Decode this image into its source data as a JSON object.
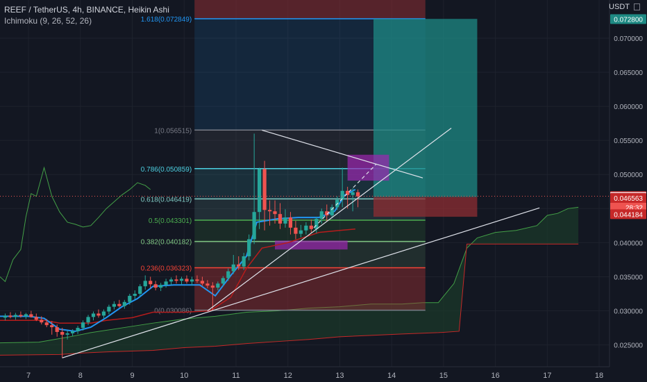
{
  "header": {
    "symbol_line": "REEF / TetherUS, 4h, BINANCE, Heikin Ashi",
    "indicator_line": "Ichimoku (9, 26, 52, 26)",
    "currency": "USDT"
  },
  "colors": {
    "background": "#131722",
    "up": "#26a69a",
    "down": "#ef5350",
    "tenkan": "#2196f3",
    "kijun": "#b71c1c",
    "lagging": "#43a047",
    "cloud_fill": "#1b3a2a",
    "cloud_line_a": "#43a047",
    "cloud_line_b": "#c62828",
    "fib_100": "#787b86",
    "fib_1618": "#2196f3",
    "fib_0786": "#4dd0e1",
    "fib_0618": "#80cbc4",
    "fib_05": "#4caf50",
    "fib_0382": "#81c784",
    "fib_0236": "#f44336",
    "fib_0": "#787b86",
    "position_target": "#1e8a84",
    "position_stop": "#8e2d33",
    "zone_magenta": "#9c27b0",
    "trendline": "#e0e3eb"
  },
  "chart_data": {
    "type": "candlestick",
    "title": "REEF / TetherUS, 4h, BINANCE, Heikin Ashi",
    "indicator": "Ichimoku (9, 26, 52, 26)",
    "x_axis": {
      "ticks": [
        "7",
        "8",
        "9",
        "10",
        "11",
        "12",
        "13",
        "14",
        "15",
        "16",
        "17",
        "18"
      ],
      "tick_x": [
        7,
        8,
        9,
        10,
        11,
        12,
        13,
        14,
        15,
        16,
        17,
        18
      ],
      "xlim": [
        6.45,
        18.2
      ]
    },
    "y_axis": {
      "ticks": [
        "0.025000",
        "0.030000",
        "0.035000",
        "0.040000",
        "0.045000",
        "0.050000",
        "0.055000",
        "0.060000",
        "0.065000",
        "0.070000"
      ],
      "tick_values": [
        0.025,
        0.03,
        0.035,
        0.04,
        0.045,
        0.05,
        0.055,
        0.06,
        0.065,
        0.07
      ],
      "ylim": [
        0.0218,
        0.0756
      ]
    },
    "candles": [
      {
        "x": 6.55,
        "o": 0.029,
        "h": 0.0296,
        "l": 0.0286,
        "c": 0.0293
      },
      {
        "x": 6.65,
        "o": 0.0293,
        "h": 0.0298,
        "l": 0.0289,
        "c": 0.0291
      },
      {
        "x": 6.75,
        "o": 0.0291,
        "h": 0.0297,
        "l": 0.0287,
        "c": 0.0294
      },
      {
        "x": 6.85,
        "o": 0.0294,
        "h": 0.0299,
        "l": 0.029,
        "c": 0.0292
      },
      {
        "x": 6.95,
        "o": 0.0292,
        "h": 0.0297,
        "l": 0.0288,
        "c": 0.0295
      },
      {
        "x": 7.05,
        "o": 0.0295,
        "h": 0.03,
        "l": 0.029,
        "c": 0.0291
      },
      {
        "x": 7.15,
        "o": 0.0291,
        "h": 0.0296,
        "l": 0.0285,
        "c": 0.0287
      },
      {
        "x": 7.25,
        "o": 0.0287,
        "h": 0.0292,
        "l": 0.028,
        "c": 0.0283
      },
      {
        "x": 7.35,
        "o": 0.0283,
        "h": 0.0288,
        "l": 0.0276,
        "c": 0.0279
      },
      {
        "x": 7.45,
        "o": 0.0279,
        "h": 0.0285,
        "l": 0.0265,
        "c": 0.0276
      },
      {
        "x": 7.55,
        "o": 0.0276,
        "h": 0.028,
        "l": 0.0262,
        "c": 0.0269
      },
      {
        "x": 7.65,
        "o": 0.0269,
        "h": 0.0275,
        "l": 0.0231,
        "c": 0.0265
      },
      {
        "x": 7.75,
        "o": 0.0265,
        "h": 0.0271,
        "l": 0.0258,
        "c": 0.0267
      },
      {
        "x": 7.85,
        "o": 0.0267,
        "h": 0.0273,
        "l": 0.0263,
        "c": 0.027
      },
      {
        "x": 7.95,
        "o": 0.027,
        "h": 0.0278,
        "l": 0.0266,
        "c": 0.0275
      },
      {
        "x": 8.05,
        "o": 0.0275,
        "h": 0.0286,
        "l": 0.0271,
        "c": 0.0283
      },
      {
        "x": 8.15,
        "o": 0.0283,
        "h": 0.0294,
        "l": 0.0279,
        "c": 0.0291
      },
      {
        "x": 8.25,
        "o": 0.0291,
        "h": 0.0299,
        "l": 0.0286,
        "c": 0.0296
      },
      {
        "x": 8.35,
        "o": 0.0296,
        "h": 0.0302,
        "l": 0.029,
        "c": 0.0293
      },
      {
        "x": 8.45,
        "o": 0.0293,
        "h": 0.0302,
        "l": 0.0289,
        "c": 0.0299
      },
      {
        "x": 8.55,
        "o": 0.0299,
        "h": 0.0309,
        "l": 0.0295,
        "c": 0.0306
      },
      {
        "x": 8.65,
        "o": 0.0306,
        "h": 0.0314,
        "l": 0.0302,
        "c": 0.031
      },
      {
        "x": 8.75,
        "o": 0.031,
        "h": 0.0316,
        "l": 0.0305,
        "c": 0.0307
      },
      {
        "x": 8.85,
        "o": 0.0307,
        "h": 0.0316,
        "l": 0.0303,
        "c": 0.0313
      },
      {
        "x": 8.95,
        "o": 0.0313,
        "h": 0.0325,
        "l": 0.0309,
        "c": 0.0322
      },
      {
        "x": 9.05,
        "o": 0.0322,
        "h": 0.033,
        "l": 0.0317,
        "c": 0.0325
      },
      {
        "x": 9.15,
        "o": 0.0325,
        "h": 0.0339,
        "l": 0.0321,
        "c": 0.0336
      },
      {
        "x": 9.25,
        "o": 0.0336,
        "h": 0.0352,
        "l": 0.0331,
        "c": 0.0344
      },
      {
        "x": 9.35,
        "o": 0.0344,
        "h": 0.035,
        "l": 0.0333,
        "c": 0.0339
      },
      {
        "x": 9.45,
        "o": 0.0339,
        "h": 0.0344,
        "l": 0.033,
        "c": 0.0334
      },
      {
        "x": 9.55,
        "o": 0.0334,
        "h": 0.0341,
        "l": 0.0329,
        "c": 0.0338
      },
      {
        "x": 9.65,
        "o": 0.0338,
        "h": 0.0347,
        "l": 0.0334,
        "c": 0.0343
      },
      {
        "x": 9.75,
        "o": 0.0343,
        "h": 0.0349,
        "l": 0.0338,
        "c": 0.0346
      },
      {
        "x": 9.85,
        "o": 0.0346,
        "h": 0.0352,
        "l": 0.034,
        "c": 0.0344
      },
      {
        "x": 9.95,
        "o": 0.0344,
        "h": 0.035,
        "l": 0.0338,
        "c": 0.0347
      },
      {
        "x": 10.05,
        "o": 0.0347,
        "h": 0.0352,
        "l": 0.034,
        "c": 0.0343
      },
      {
        "x": 10.15,
        "o": 0.0343,
        "h": 0.035,
        "l": 0.0337,
        "c": 0.0346
      },
      {
        "x": 10.25,
        "o": 0.0346,
        "h": 0.0352,
        "l": 0.0341,
        "c": 0.0344
      },
      {
        "x": 10.35,
        "o": 0.0344,
        "h": 0.035,
        "l": 0.0337,
        "c": 0.034
      },
      {
        "x": 10.45,
        "o": 0.034,
        "h": 0.0345,
        "l": 0.0333,
        "c": 0.0337
      },
      {
        "x": 10.55,
        "o": 0.0337,
        "h": 0.0342,
        "l": 0.03,
        "c": 0.0334
      },
      {
        "x": 10.65,
        "o": 0.0334,
        "h": 0.0343,
        "l": 0.033,
        "c": 0.034
      },
      {
        "x": 10.75,
        "o": 0.034,
        "h": 0.0351,
        "l": 0.0336,
        "c": 0.0348
      },
      {
        "x": 10.85,
        "o": 0.0348,
        "h": 0.0362,
        "l": 0.0344,
        "c": 0.0358
      },
      {
        "x": 10.95,
        "o": 0.0358,
        "h": 0.0382,
        "l": 0.0354,
        "c": 0.0368
      },
      {
        "x": 11.05,
        "o": 0.0368,
        "h": 0.038,
        "l": 0.036,
        "c": 0.0365
      },
      {
        "x": 11.15,
        "o": 0.0365,
        "h": 0.0385,
        "l": 0.036,
        "c": 0.038
      },
      {
        "x": 11.25,
        "o": 0.038,
        "h": 0.0412,
        "l": 0.0374,
        "c": 0.0405
      },
      {
        "x": 11.35,
        "o": 0.0405,
        "h": 0.056,
        "l": 0.0398,
        "c": 0.0445
      },
      {
        "x": 11.45,
        "o": 0.0445,
        "h": 0.051,
        "l": 0.042,
        "c": 0.0508
      },
      {
        "x": 11.55,
        "o": 0.0508,
        "h": 0.052,
        "l": 0.0418,
        "c": 0.0448
      },
      {
        "x": 11.65,
        "o": 0.0448,
        "h": 0.0462,
        "l": 0.0425,
        "c": 0.0446
      },
      {
        "x": 11.75,
        "o": 0.0446,
        "h": 0.0462,
        "l": 0.0428,
        "c": 0.0442
      },
      {
        "x": 11.85,
        "o": 0.0442,
        "h": 0.0458,
        "l": 0.042,
        "c": 0.0428
      },
      {
        "x": 11.95,
        "o": 0.0428,
        "h": 0.0449,
        "l": 0.0422,
        "c": 0.0437
      },
      {
        "x": 12.05,
        "o": 0.0437,
        "h": 0.0445,
        "l": 0.0412,
        "c": 0.0422
      },
      {
        "x": 12.15,
        "o": 0.0422,
        "h": 0.0432,
        "l": 0.0405,
        "c": 0.0413
      },
      {
        "x": 12.25,
        "o": 0.0413,
        "h": 0.0426,
        "l": 0.0408,
        "c": 0.0418
      },
      {
        "x": 12.35,
        "o": 0.0418,
        "h": 0.043,
        "l": 0.0412,
        "c": 0.0425
      },
      {
        "x": 12.45,
        "o": 0.0425,
        "h": 0.0434,
        "l": 0.0415,
        "c": 0.042
      },
      {
        "x": 12.55,
        "o": 0.042,
        "h": 0.0438,
        "l": 0.0414,
        "c": 0.0435
      },
      {
        "x": 12.65,
        "o": 0.0435,
        "h": 0.045,
        "l": 0.0428,
        "c": 0.0446
      },
      {
        "x": 12.75,
        "o": 0.0446,
        "h": 0.0456,
        "l": 0.0432,
        "c": 0.044
      },
      {
        "x": 12.85,
        "o": 0.044,
        "h": 0.0456,
        "l": 0.0436,
        "c": 0.0452
      },
      {
        "x": 12.95,
        "o": 0.0452,
        "h": 0.0468,
        "l": 0.0448,
        "c": 0.0463
      },
      {
        "x": 13.05,
        "o": 0.0463,
        "h": 0.051,
        "l": 0.0452,
        "c": 0.0476
      },
      {
        "x": 13.15,
        "o": 0.0476,
        "h": 0.0482,
        "l": 0.045,
        "c": 0.047
      },
      {
        "x": 13.25,
        "o": 0.047,
        "h": 0.048,
        "l": 0.0446,
        "c": 0.0474
      },
      {
        "x": 13.35,
        "o": 0.0474,
        "h": 0.0478,
        "l": 0.0452,
        "c": 0.0468
      }
    ],
    "tenkan": [
      {
        "x": 6.45,
        "y": 0.0292
      },
      {
        "x": 7.0,
        "y": 0.0292
      },
      {
        "x": 7.3,
        "y": 0.0289
      },
      {
        "x": 7.6,
        "y": 0.0273
      },
      {
        "x": 7.9,
        "y": 0.027
      },
      {
        "x": 8.2,
        "y": 0.0276
      },
      {
        "x": 8.5,
        "y": 0.029
      },
      {
        "x": 8.8,
        "y": 0.0306
      },
      {
        "x": 9.1,
        "y": 0.0318
      },
      {
        "x": 9.4,
        "y": 0.0336
      },
      {
        "x": 9.8,
        "y": 0.0338
      },
      {
        "x": 10.3,
        "y": 0.0338
      },
      {
        "x": 10.6,
        "y": 0.0322
      },
      {
        "x": 10.9,
        "y": 0.0352
      },
      {
        "x": 11.2,
        "y": 0.038
      },
      {
        "x": 11.4,
        "y": 0.043
      },
      {
        "x": 11.8,
        "y": 0.0435
      },
      {
        "x": 12.2,
        "y": 0.0437
      },
      {
        "x": 12.6,
        "y": 0.0437
      },
      {
        "x": 12.9,
        "y": 0.0446
      },
      {
        "x": 13.1,
        "y": 0.047
      },
      {
        "x": 13.3,
        "y": 0.0478
      }
    ],
    "kijun": [
      {
        "x": 6.45,
        "y": 0.0286
      },
      {
        "x": 7.3,
        "y": 0.0286
      },
      {
        "x": 7.6,
        "y": 0.0282
      },
      {
        "x": 8.2,
        "y": 0.0282
      },
      {
        "x": 8.5,
        "y": 0.0286
      },
      {
        "x": 9.0,
        "y": 0.029
      },
      {
        "x": 9.4,
        "y": 0.0298
      },
      {
        "x": 10.0,
        "y": 0.0298
      },
      {
        "x": 10.5,
        "y": 0.03
      },
      {
        "x": 10.9,
        "y": 0.032
      },
      {
        "x": 11.2,
        "y": 0.0362
      },
      {
        "x": 11.5,
        "y": 0.0392
      },
      {
        "x": 12.0,
        "y": 0.04
      },
      {
        "x": 12.6,
        "y": 0.0415
      },
      {
        "x": 13.0,
        "y": 0.0418
      },
      {
        "x": 13.3,
        "y": 0.042
      }
    ],
    "lagging_span": [
      {
        "x": 6.45,
        "y": 0.035
      },
      {
        "x": 6.55,
        "y": 0.0343
      },
      {
        "x": 6.7,
        "y": 0.0375
      },
      {
        "x": 6.85,
        "y": 0.039
      },
      {
        "x": 6.95,
        "y": 0.0438
      },
      {
        "x": 7.05,
        "y": 0.0472
      },
      {
        "x": 7.15,
        "y": 0.0468
      },
      {
        "x": 7.3,
        "y": 0.051
      },
      {
        "x": 7.45,
        "y": 0.0468
      },
      {
        "x": 7.6,
        "y": 0.0445
      },
      {
        "x": 7.75,
        "y": 0.043
      },
      {
        "x": 7.9,
        "y": 0.0427
      },
      {
        "x": 8.05,
        "y": 0.0423
      },
      {
        "x": 8.2,
        "y": 0.0425
      },
      {
        "x": 8.35,
        "y": 0.0437
      },
      {
        "x": 8.5,
        "y": 0.045
      },
      {
        "x": 8.65,
        "y": 0.046
      },
      {
        "x": 8.8,
        "y": 0.047
      },
      {
        "x": 8.95,
        "y": 0.0478
      },
      {
        "x": 9.1,
        "y": 0.0488
      },
      {
        "x": 9.25,
        "y": 0.0484
      },
      {
        "x": 9.35,
        "y": 0.0478
      }
    ],
    "cloud_span_a": [
      {
        "x": 6.45,
        "y": 0.0253
      },
      {
        "x": 7.2,
        "y": 0.0254
      },
      {
        "x": 7.5,
        "y": 0.0258
      },
      {
        "x": 7.8,
        "y": 0.0262
      },
      {
        "x": 8.2,
        "y": 0.0268
      },
      {
        "x": 8.8,
        "y": 0.0275
      },
      {
        "x": 9.4,
        "y": 0.0282
      },
      {
        "x": 10.0,
        "y": 0.0288
      },
      {
        "x": 10.6,
        "y": 0.0292
      },
      {
        "x": 11.2,
        "y": 0.0298
      },
      {
        "x": 11.8,
        "y": 0.03
      },
      {
        "x": 12.4,
        "y": 0.0304
      },
      {
        "x": 13.0,
        "y": 0.0306
      },
      {
        "x": 13.6,
        "y": 0.031
      },
      {
        "x": 14.2,
        "y": 0.031
      },
      {
        "x": 14.6,
        "y": 0.0312
      },
      {
        "x": 14.9,
        "y": 0.0312
      },
      {
        "x": 15.2,
        "y": 0.034
      },
      {
        "x": 15.45,
        "y": 0.0392
      },
      {
        "x": 15.65,
        "y": 0.0407
      },
      {
        "x": 16.0,
        "y": 0.0415
      },
      {
        "x": 16.4,
        "y": 0.0418
      },
      {
        "x": 16.8,
        "y": 0.0425
      },
      {
        "x": 17.0,
        "y": 0.044
      },
      {
        "x": 17.2,
        "y": 0.0443
      },
      {
        "x": 17.4,
        "y": 0.045
      },
      {
        "x": 17.6,
        "y": 0.0452
      }
    ],
    "cloud_span_b": [
      {
        "x": 6.45,
        "y": 0.0235
      },
      {
        "x": 7.6,
        "y": 0.0236
      },
      {
        "x": 8.0,
        "y": 0.0238
      },
      {
        "x": 8.6,
        "y": 0.024
      },
      {
        "x": 9.4,
        "y": 0.0242
      },
      {
        "x": 10.0,
        "y": 0.0246
      },
      {
        "x": 10.6,
        "y": 0.0248
      },
      {
        "x": 11.2,
        "y": 0.0252
      },
      {
        "x": 11.8,
        "y": 0.0255
      },
      {
        "x": 12.4,
        "y": 0.0258
      },
      {
        "x": 13.0,
        "y": 0.0262
      },
      {
        "x": 13.6,
        "y": 0.0264
      },
      {
        "x": 14.2,
        "y": 0.0266
      },
      {
        "x": 14.9,
        "y": 0.0268
      },
      {
        "x": 15.3,
        "y": 0.027
      },
      {
        "x": 15.45,
        "y": 0.0398
      },
      {
        "x": 16.0,
        "y": 0.0398
      },
      {
        "x": 16.6,
        "y": 0.0398
      },
      {
        "x": 17.2,
        "y": 0.0398
      },
      {
        "x": 17.6,
        "y": 0.0398
      }
    ],
    "fib_retracement": {
      "x_start": 10.2,
      "x_end": 14.65,
      "levels": [
        {
          "ratio": 1.618,
          "label": "1.618(0.072849)",
          "price": 0.072849,
          "color": "#2196f3"
        },
        {
          "ratio": 1.0,
          "label": "1(0.056515)",
          "price": 0.056515,
          "color": "#787b86"
        },
        {
          "ratio": 0.786,
          "label": "0.786(0.050859)",
          "price": 0.050859,
          "color": "#4dd0e1"
        },
        {
          "ratio": 0.618,
          "label": "0.618(0.046419)",
          "price": 0.046419,
          "color": "#80cbc4"
        },
        {
          "ratio": 0.5,
          "label": "0.5(0.043301)",
          "price": 0.043301,
          "color": "#4caf50"
        },
        {
          "ratio": 0.382,
          "label": "0.382(0.040182)",
          "price": 0.040182,
          "color": "#81c784"
        },
        {
          "ratio": 0.236,
          "label": "0.236(0.036323)",
          "price": 0.036323,
          "color": "#f44336"
        },
        {
          "ratio": 0,
          "label": "0(0.030086)",
          "price": 0.030086,
          "color": "#787b86"
        }
      ]
    },
    "long_position": {
      "x_start": 13.65,
      "x_end": 15.65,
      "entry": 0.0467,
      "target": 0.07283,
      "stop": 0.0438
    },
    "zones": [
      {
        "x_start": 13.15,
        "x_end": 13.95,
        "y_low": 0.0491,
        "y_high": 0.0529
      },
      {
        "x_start": 11.75,
        "x_end": 13.15,
        "y_low": 0.039,
        "y_high": 0.0403
      }
    ],
    "trendlines": [
      {
        "x1": 7.65,
        "y1": 0.0231,
        "x2": 16.85,
        "y2": 0.0451
      },
      {
        "x1": 10.45,
        "y1": 0.03,
        "x2": 15.15,
        "y2": 0.0568
      },
      {
        "x1": 11.5,
        "y1": 0.0565,
        "x2": 14.6,
        "y2": 0.0495
      }
    ],
    "dashed_projection": {
      "x1": 12.5,
      "y1": 0.0422,
      "x2": 13.7,
      "y2": 0.0515
    },
    "price_axis_labels": [
      {
        "value": 0.0728,
        "text": "0.072800",
        "color": "#1e8a84"
      },
      {
        "value": 0.046818,
        "text": "0.046818",
        "color": "#ef5350"
      },
      {
        "value": 0.0452,
        "text": "28:32",
        "color": "#ef5350"
      },
      {
        "value": 0.04668,
        "text": "0.046680",
        "color": "#e0e3eb"
      },
      {
        "value": 0.046563,
        "text": "0.046563",
        "color": "#c62828"
      },
      {
        "value": 0.044184,
        "text": "0.044184",
        "color": "#c62828"
      }
    ],
    "last_price": 0.046818
  }
}
